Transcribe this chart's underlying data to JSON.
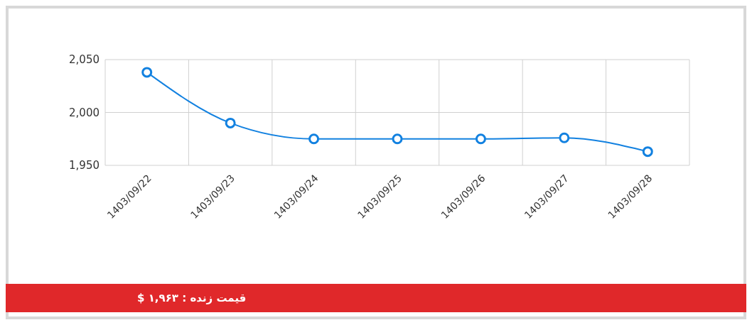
{
  "chart_data": {
    "type": "line",
    "categories": [
      "1403/09/22",
      "1403/09/23",
      "1403/09/24",
      "1403/09/25",
      "1403/09/26",
      "1403/09/27",
      "1403/09/28"
    ],
    "series": [
      {
        "color": "#1281e0",
        "values": [
          2038,
          1990,
          1975,
          1975,
          1975,
          1976,
          1963
        ]
      }
    ],
    "ylim": [
      1950,
      2050
    ],
    "yticks": [
      {
        "value": 1950,
        "label": "1,950"
      },
      {
        "value": 2000,
        "label": "2,000"
      },
      {
        "value": 2050,
        "label": "2,050"
      }
    ],
    "grid": true,
    "marker": "circle",
    "line_style": "solid",
    "annotations": [
      "قیمت زنده : ۱,۹۶۳ $"
    ]
  }
}
